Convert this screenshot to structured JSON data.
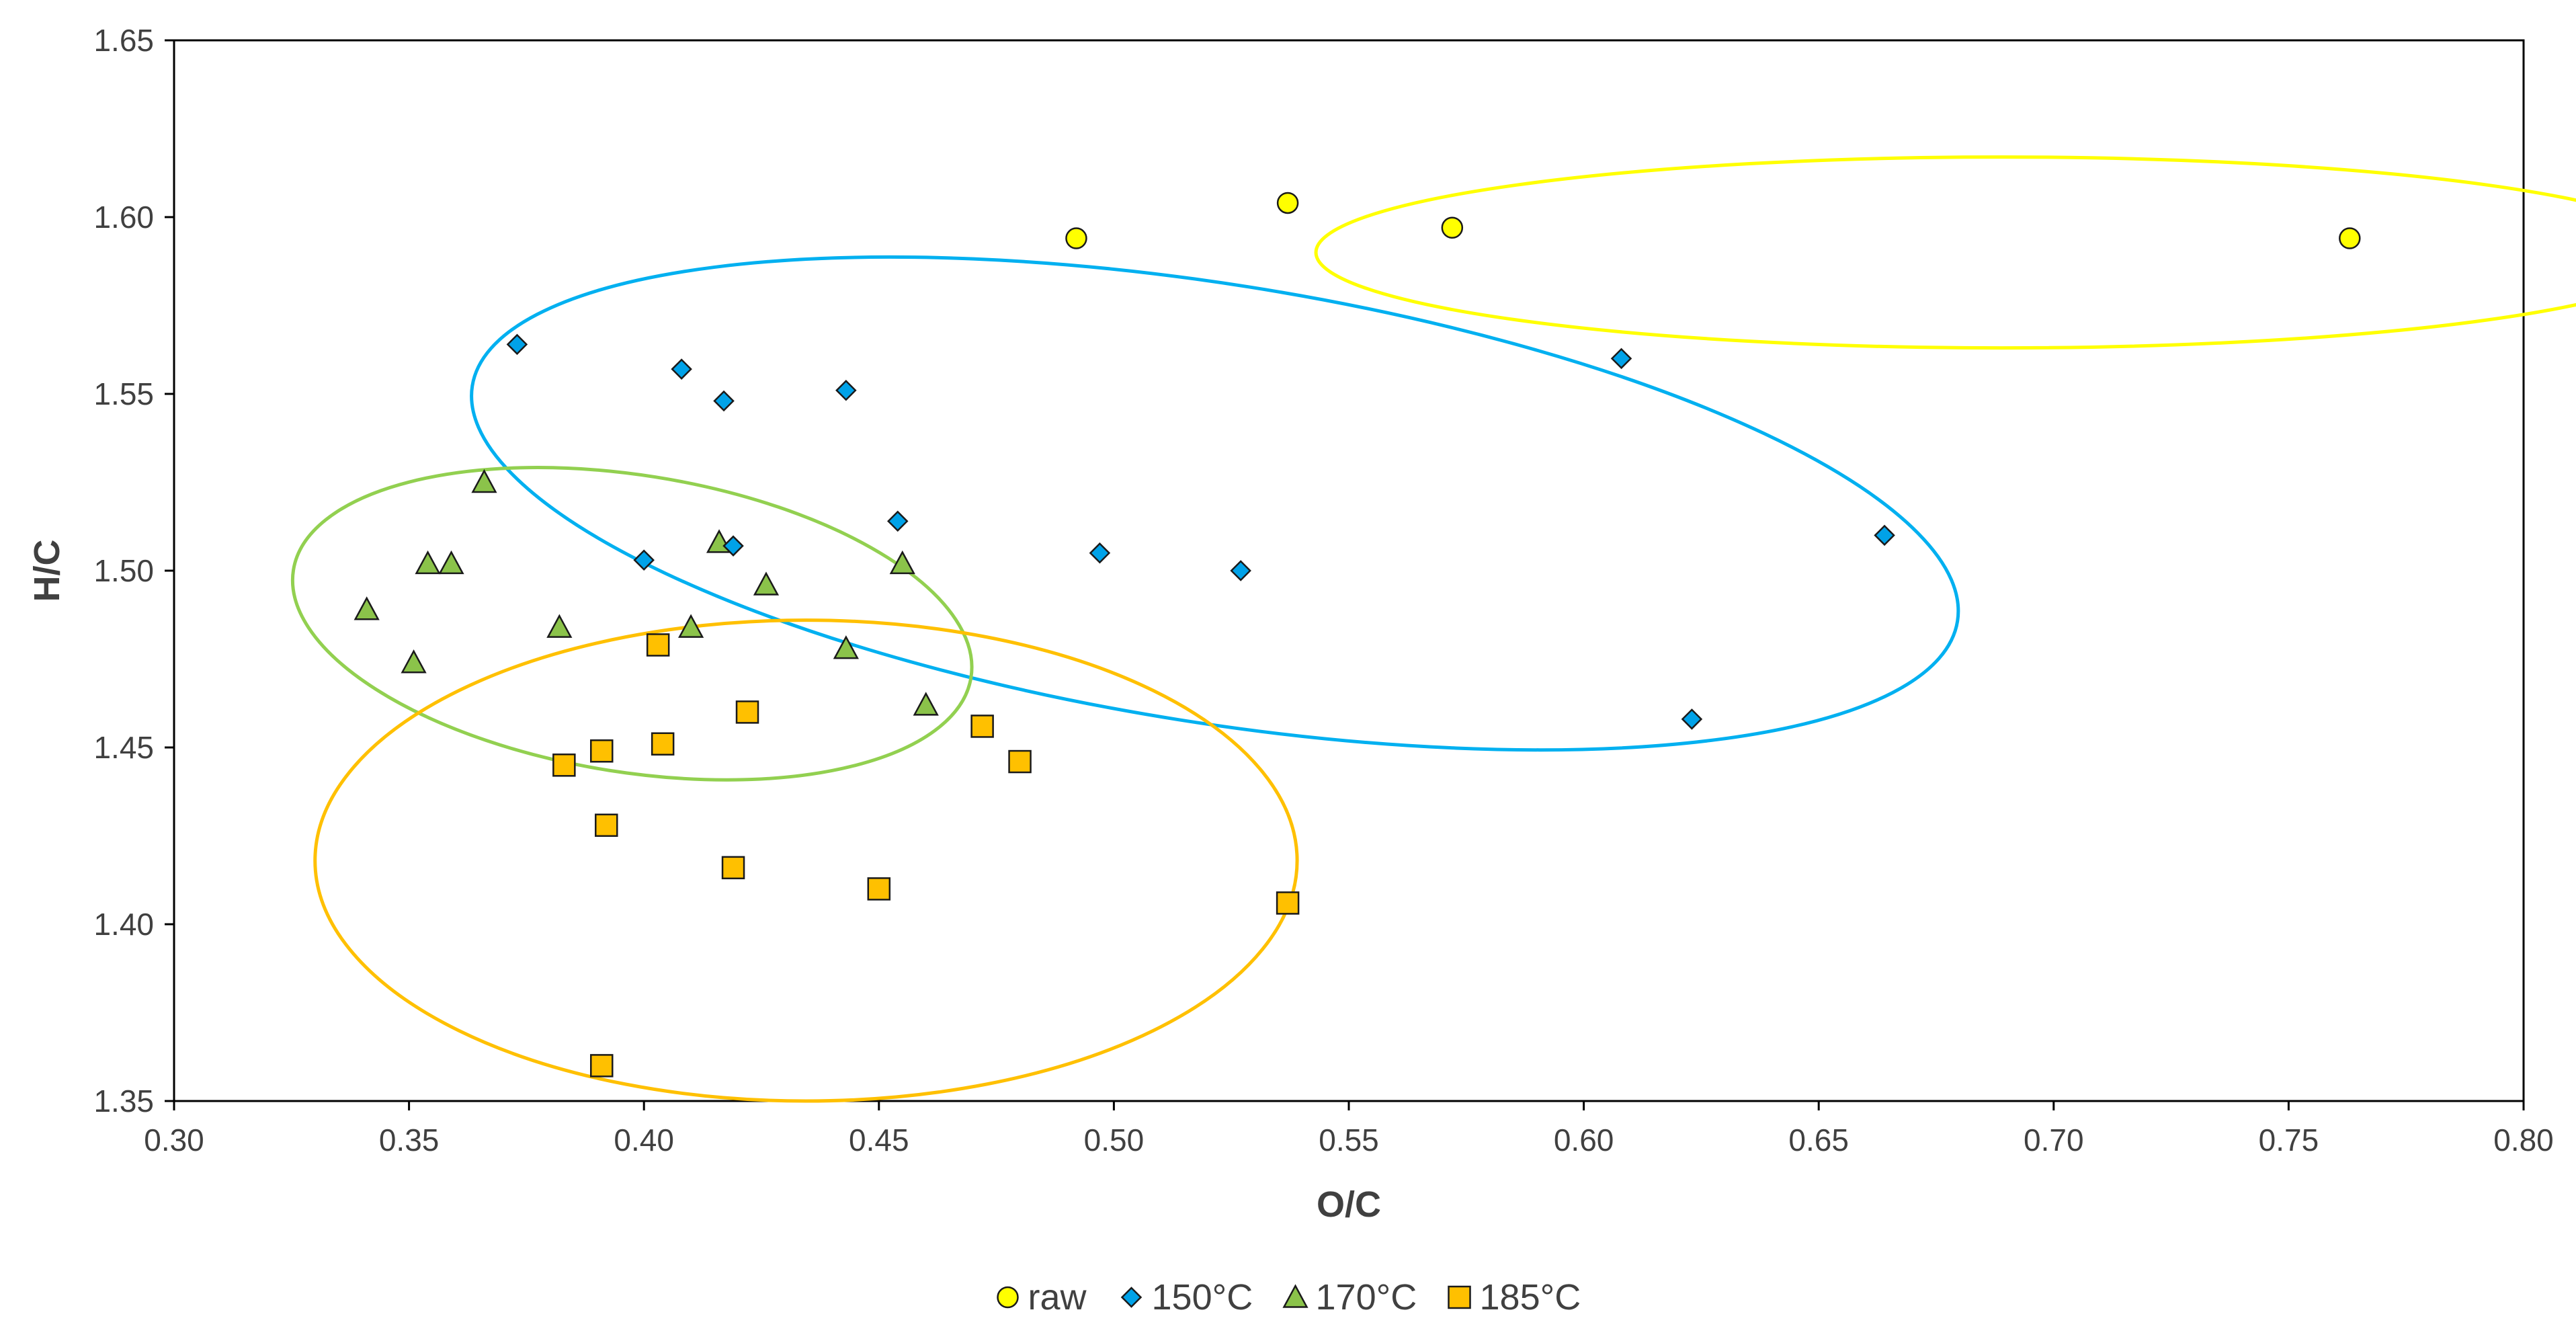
{
  "chart_data": {
    "type": "scatter",
    "title": "",
    "xlabel": "O/C",
    "ylabel": "H/C",
    "xlim": [
      0.3,
      0.8
    ],
    "ylim": [
      1.35,
      1.65
    ],
    "xticks": [
      "0.30",
      "0.35",
      "0.40",
      "0.45",
      "0.50",
      "0.55",
      "0.60",
      "0.65",
      "0.70",
      "0.75",
      "0.80"
    ],
    "yticks": [
      "1.35",
      "1.40",
      "1.45",
      "1.50",
      "1.55",
      "1.60",
      "1.65"
    ],
    "legend_position": "bottom-center",
    "grid": false,
    "series": [
      {
        "name": "raw",
        "marker": "circle",
        "color": "#FFFF00",
        "points": [
          [
            0.492,
            1.594
          ],
          [
            0.537,
            1.604
          ],
          [
            0.572,
            1.597
          ],
          [
            0.763,
            1.594
          ]
        ]
      },
      {
        "name": "150°C",
        "marker": "diamond",
        "color": "#00A2E8",
        "points": [
          [
            0.373,
            1.564
          ],
          [
            0.408,
            1.557
          ],
          [
            0.417,
            1.548
          ],
          [
            0.443,
            1.551
          ],
          [
            0.4,
            1.503
          ],
          [
            0.419,
            1.507
          ],
          [
            0.454,
            1.514
          ],
          [
            0.497,
            1.505
          ],
          [
            0.527,
            1.5
          ],
          [
            0.608,
            1.56
          ],
          [
            0.664,
            1.51
          ],
          [
            0.623,
            1.458
          ]
        ]
      },
      {
        "name": "170°C",
        "marker": "triangle",
        "color": "#8BC34A",
        "points": [
          [
            0.366,
            1.525
          ],
          [
            0.354,
            1.502
          ],
          [
            0.359,
            1.502
          ],
          [
            0.341,
            1.489
          ],
          [
            0.351,
            1.474
          ],
          [
            0.382,
            1.484
          ],
          [
            0.416,
            1.508
          ],
          [
            0.41,
            1.484
          ],
          [
            0.426,
            1.496
          ],
          [
            0.455,
            1.502
          ],
          [
            0.443,
            1.478
          ],
          [
            0.46,
            1.462
          ]
        ]
      },
      {
        "name": "185°C",
        "marker": "square",
        "color": "#FFC000",
        "points": [
          [
            0.403,
            1.479
          ],
          [
            0.383,
            1.445
          ],
          [
            0.391,
            1.449
          ],
          [
            0.404,
            1.451
          ],
          [
            0.422,
            1.46
          ],
          [
            0.392,
            1.428
          ],
          [
            0.419,
            1.416
          ],
          [
            0.45,
            1.41
          ],
          [
            0.472,
            1.456
          ],
          [
            0.48,
            1.446
          ],
          [
            0.537,
            1.406
          ],
          [
            0.391,
            1.36
          ]
        ]
      }
    ],
    "ellipses": [
      {
        "name": "raw-cluster-ellipse",
        "color": "#FFFF00",
        "cx": 0.689,
        "cy": 1.59,
        "rx": 0.146,
        "ry": 0.027,
        "rotation_deg": 0
      },
      {
        "name": "150c-cluster-ellipse",
        "color": "#00B0F0",
        "cx": 0.5215,
        "cy": 1.519,
        "rx": 0.16,
        "ry": 0.062,
        "rotation_deg": 9
      },
      {
        "name": "170c-cluster-ellipse",
        "color": "#92D050",
        "cx": 0.3975,
        "cy": 1.485,
        "rx": 0.073,
        "ry": 0.042,
        "rotation_deg": 9
      },
      {
        "name": "185c-cluster-ellipse",
        "color": "#FFC000",
        "cx": 0.4345,
        "cy": 1.418,
        "rx": 0.1045,
        "ry": 0.068,
        "rotation_deg": 0
      }
    ]
  }
}
